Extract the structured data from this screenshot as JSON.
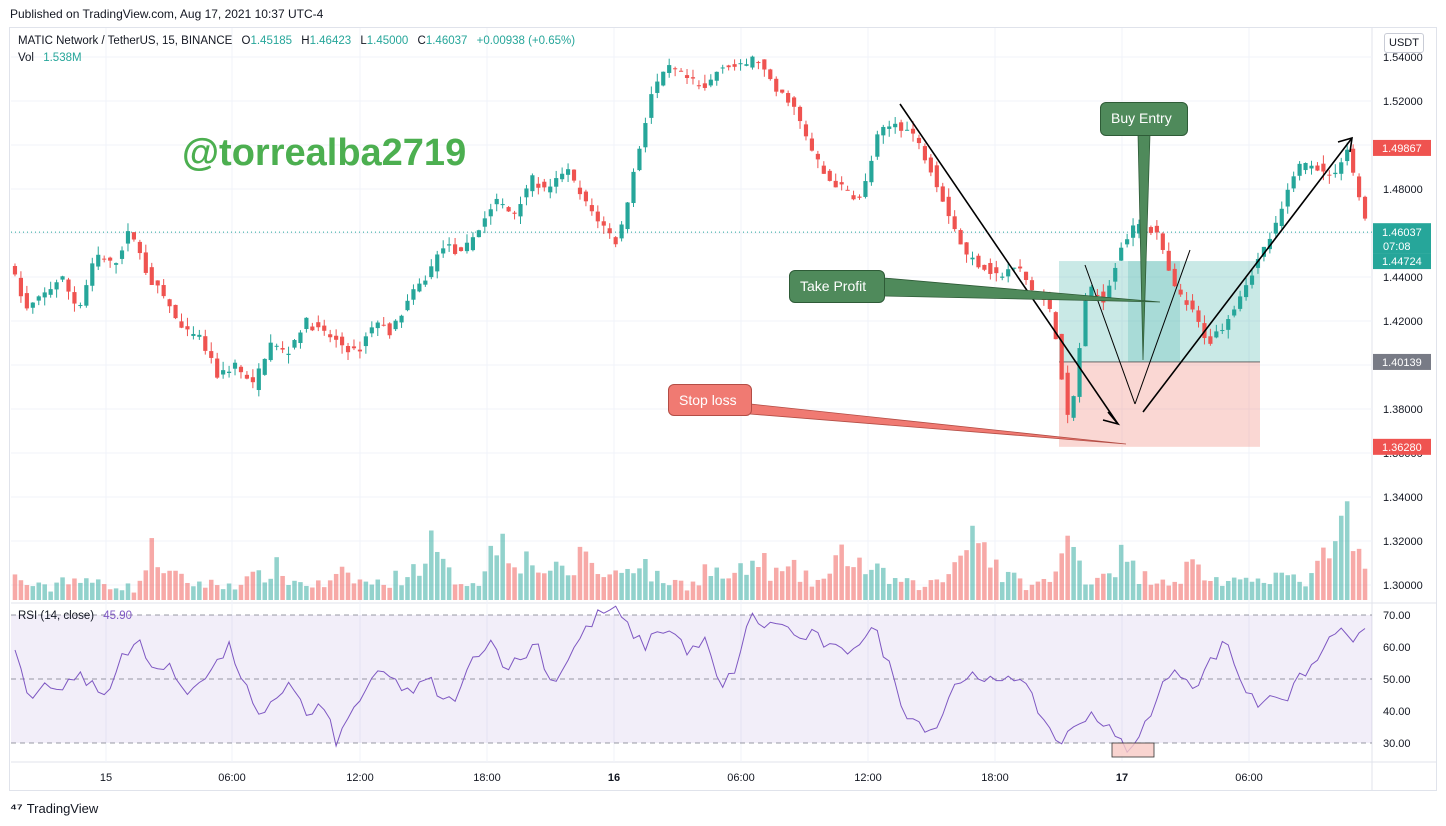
{
  "published": "Published on TradingView.com, Aug 17, 2021 10:37 UTC-4",
  "legend": {
    "symbol": "MATIC Network / TetherUS, 15, BINANCE",
    "o_label": "O",
    "o": "1.45185",
    "h_label": "H",
    "h": "1.46423",
    "l_label": "L",
    "l": "1.45000",
    "c_label": "C",
    "c": "1.46037",
    "change": "+0.00938 (+0.65%)",
    "vol_label": "Vol",
    "vol": "1.538M"
  },
  "rsi_legend": {
    "label": "RSI (14, close)",
    "value": "45.90"
  },
  "watermark": "@torrealba2719",
  "currency": "USDT",
  "annotations": {
    "buy_entry": "Buy Entry",
    "take_profit": "Take Profit",
    "stop_loss": "Stop loss"
  },
  "price_tags": {
    "p1": "1.49867",
    "last": "1.46037",
    "countdown": "07:08",
    "p2": "1.44724",
    "p3": "1.40139",
    "p4": "1.36280"
  },
  "footer": "TradingView",
  "colors": {
    "up": "#26a69a",
    "down": "#ef5350",
    "rsi": "#7e57c2",
    "profit_zone": "#26a69a",
    "loss_zone": "#f28b82"
  },
  "chart_data": {
    "type": "candlestick",
    "price_axis": {
      "ticks": [
        "1.54000",
        "1.52000",
        "1.50000",
        "1.48000",
        "1.46000",
        "1.44000",
        "1.42000",
        "1.40000",
        "1.38000",
        "1.36000",
        "1.34000",
        "1.32000",
        "1.30000"
      ],
      "range": [
        1.292,
        1.545
      ]
    },
    "rsi_axis": {
      "ticks": [
        "70.00",
        "60.00",
        "50.00",
        "40.00",
        "30.00"
      ],
      "range": [
        23,
        75
      ],
      "bands": [
        70,
        50,
        30
      ]
    },
    "x_ticks": [
      "15",
      "06:00",
      "12:00",
      "18:00",
      "16",
      "06:00",
      "12:00",
      "18:00",
      "17",
      "06:00"
    ],
    "x_tick_bold": [
      false,
      false,
      false,
      false,
      true,
      false,
      false,
      false,
      true,
      false
    ],
    "price_keypoints": [
      1.447,
      1.425,
      1.432,
      1.44,
      1.425,
      1.45,
      1.445,
      1.462,
      1.44,
      1.43,
      1.415,
      1.412,
      1.395,
      1.4,
      1.39,
      1.41,
      1.405,
      1.42,
      1.415,
      1.41,
      1.405,
      1.42,
      1.415,
      1.43,
      1.44,
      1.455,
      1.45,
      1.462,
      1.475,
      1.468,
      1.485,
      1.478,
      1.49,
      1.475,
      1.465,
      1.455,
      1.49,
      1.525,
      1.535,
      1.53,
      1.525,
      1.537,
      1.535,
      1.54,
      1.525,
      1.52,
      1.5,
      1.485,
      1.48,
      1.475,
      1.505,
      1.51,
      1.505,
      1.49,
      1.47,
      1.45,
      1.445,
      1.44,
      1.445,
      1.432,
      1.425,
      1.37,
      1.435,
      1.43,
      1.455,
      1.465,
      1.46,
      1.435,
      1.425,
      1.41,
      1.42,
      1.435,
      1.45,
      1.465,
      1.49,
      1.492,
      1.485,
      1.498,
      1.465
    ],
    "volume_keypoints": [
      12,
      8,
      6,
      14,
      9,
      10,
      8,
      6,
      28,
      13,
      10,
      9,
      8,
      10,
      12,
      18,
      10,
      9,
      8,
      14,
      10,
      9,
      12,
      16,
      30,
      14,
      10,
      12,
      38,
      24,
      20,
      16,
      14,
      28,
      12,
      16,
      24,
      12,
      10,
      8,
      18,
      12,
      15,
      22,
      14,
      16,
      10,
      12,
      28,
      18,
      14,
      10,
      8,
      9,
      14,
      42,
      32,
      14,
      10,
      8,
      12,
      34,
      10,
      16,
      24,
      12,
      14,
      10,
      20,
      12,
      10,
      8,
      15,
      14,
      10,
      12,
      30,
      40,
      14
    ],
    "rsi_keypoints": [
      60,
      42,
      50,
      46,
      52,
      48,
      44,
      58,
      62,
      52,
      56,
      44,
      50,
      54,
      60,
      48,
      36,
      44,
      50,
      38,
      42,
      30,
      40,
      48,
      52,
      48,
      46,
      50,
      42,
      46,
      58,
      62,
      54,
      56,
      62,
      48,
      56,
      64,
      70,
      72,
      66,
      60,
      66,
      64,
      58,
      62,
      46,
      54,
      70,
      66,
      68,
      62,
      64,
      60,
      58,
      62,
      66,
      54,
      40,
      36,
      34,
      46,
      52,
      48,
      50,
      52,
      46,
      38,
      30,
      34,
      40,
      36,
      30,
      28,
      40,
      50,
      52,
      48,
      56,
      62,
      48,
      42,
      46,
      44,
      52,
      56,
      66,
      62,
      64
    ]
  }
}
